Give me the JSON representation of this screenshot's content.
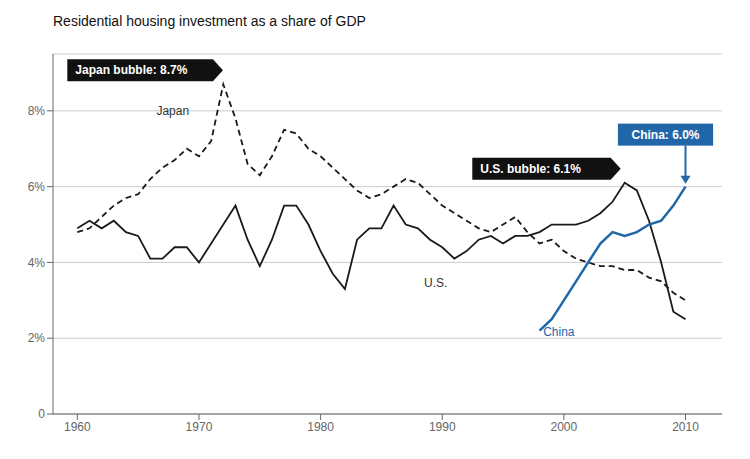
{
  "chart_data": {
    "type": "line",
    "title": "Residential housing investment as a share of GDP",
    "x": [
      1960,
      1961,
      1962,
      1963,
      1964,
      1965,
      1966,
      1967,
      1968,
      1969,
      1970,
      1971,
      1972,
      1973,
      1974,
      1975,
      1976,
      1977,
      1978,
      1979,
      1980,
      1981,
      1982,
      1983,
      1984,
      1985,
      1986,
      1987,
      1988,
      1989,
      1990,
      1991,
      1992,
      1993,
      1994,
      1995,
      1996,
      1997,
      1998,
      1999,
      2000,
      2001,
      2002,
      2003,
      2004,
      2005,
      2006,
      2007,
      2008,
      2009,
      2010
    ],
    "series": [
      {
        "color": "#1a1a1a",
        "line_style": "dashed",
        "values": [
          4.8,
          4.9,
          5.2,
          5.5,
          5.7,
          5.8,
          6.2,
          6.5,
          6.7,
          7.0,
          6.8,
          7.2,
          8.7,
          7.8,
          6.6,
          6.3,
          6.8,
          7.5,
          7.4,
          7.0,
          6.8,
          6.5,
          6.2,
          5.9,
          5.7,
          5.8,
          6.0,
          6.2,
          6.1,
          5.8,
          5.5,
          5.3,
          5.1,
          4.9,
          4.8,
          5.0,
          5.2,
          4.8,
          4.5,
          4.6,
          4.3,
          4.1,
          4.0,
          3.9,
          3.9,
          3.8,
          3.8,
          3.6,
          3.5,
          3.2,
          3.0
        ]
      },
      {
        "color": "#1a1a1a",
        "line_style": "solid",
        "values": [
          4.9,
          5.1,
          4.9,
          5.1,
          4.8,
          4.7,
          4.1,
          4.1,
          4.4,
          4.4,
          4.0,
          4.5,
          5.0,
          5.5,
          4.6,
          3.9,
          4.6,
          5.5,
          5.5,
          5.0,
          4.3,
          3.7,
          3.3,
          4.6,
          4.9,
          4.9,
          5.5,
          5.0,
          4.9,
          4.6,
          4.4,
          4.1,
          4.3,
          4.6,
          4.7,
          4.5,
          4.7,
          4.7,
          4.8,
          5.0,
          5.0,
          5.0,
          5.1,
          5.3,
          5.6,
          6.1,
          5.9,
          5.1,
          4.0,
          2.7,
          2.5
        ]
      },
      {
        "color": "#2266aa",
        "line_style": "solid",
        "values": [
          null,
          null,
          null,
          null,
          null,
          null,
          null,
          null,
          null,
          null,
          null,
          null,
          null,
          null,
          null,
          null,
          null,
          null,
          null,
          null,
          null,
          null,
          null,
          null,
          null,
          null,
          null,
          null,
          null,
          null,
          null,
          null,
          null,
          null,
          null,
          null,
          null,
          null,
          2.2,
          2.5,
          3.0,
          3.5,
          4.0,
          4.5,
          4.8,
          4.7,
          4.8,
          5.0,
          5.1,
          5.5,
          6.0
        ]
      }
    ],
    "xlim": [
      1958,
      2013
    ],
    "xticks": [
      1960,
      1970,
      1980,
      1990,
      2000,
      2010
    ],
    "ylim": [
      0,
      9.5
    ],
    "yticks": [
      0,
      {
        "value": 2,
        "label": "2%"
      },
      {
        "value": 4,
        "label": "4%"
      },
      {
        "value": 6,
        "label": "6%"
      },
      {
        "value": 8,
        "label": "8%"
      }
    ],
    "grid": true,
    "annotations": [
      {
        "text": "Japan bubble: 8.7%",
        "x": 1972.3,
        "y": 8.7,
        "color": "#111111"
      },
      {
        "text": "U.S. bubble: 6.1%",
        "x": 2005.0,
        "y": 6.1,
        "color": "#111111"
      },
      {
        "text": "China: 6.0%",
        "x": 2010.0,
        "y": 6.0,
        "color": "#2266aa"
      }
    ],
    "labels": [
      {
        "text": "U.S.",
        "x": 1988.5,
        "y": 3.35,
        "color": "#333333"
      },
      {
        "text": "Japan",
        "x": 1966.5,
        "y": 7.9,
        "color": "#333333"
      },
      {
        "text": "China",
        "x": 1998.3,
        "y": 2.05,
        "color": "#2266aa"
      }
    ]
  }
}
